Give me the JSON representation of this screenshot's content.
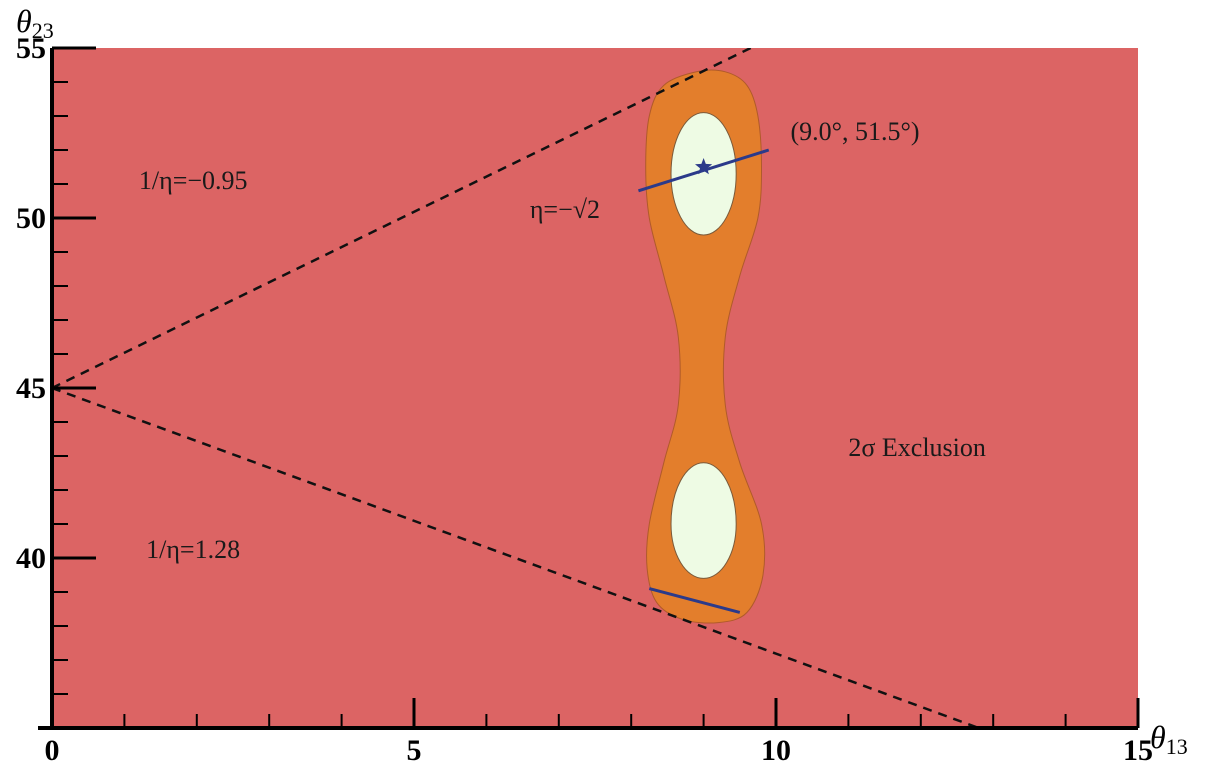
{
  "chart_data": {
    "type": "region",
    "xlabel": "θ",
    "xlabel_sub": "13",
    "ylabel": "θ",
    "ylabel_sub": "23",
    "xlim": [
      0,
      15
    ],
    "ylim": [
      35,
      55
    ],
    "x_ticks": [
      0,
      5,
      10,
      15
    ],
    "y_ticks": [
      40,
      45,
      50,
      55
    ],
    "x_minor_step": 1,
    "y_minor_step": 1,
    "colors": {
      "exclusion": "#dc6464",
      "allowed_2sigma": "#e37e2c",
      "allowed_1sigma": "#eefbe4",
      "eta_line": "#2b3a8a",
      "dashed": "#111111"
    },
    "regions": {
      "exclusion_label": "2σ Exclusion",
      "outer_allowed_2sigma": {
        "points": [
          [
            8.9,
            54.3
          ],
          [
            9.3,
            54.3
          ],
          [
            9.6,
            53.9
          ],
          [
            9.75,
            53.0
          ],
          [
            9.8,
            51.5
          ],
          [
            9.75,
            50.0
          ],
          [
            9.5,
            48.3
          ],
          [
            9.3,
            46.5
          ],
          [
            9.3,
            44.5
          ],
          [
            9.5,
            42.8
          ],
          [
            9.8,
            41.0
          ],
          [
            9.82,
            39.5
          ],
          [
            9.6,
            38.4
          ],
          [
            9.2,
            38.1
          ],
          [
            8.7,
            38.2
          ],
          [
            8.35,
            38.7
          ],
          [
            8.22,
            39.7
          ],
          [
            8.25,
            41.0
          ],
          [
            8.45,
            42.8
          ],
          [
            8.65,
            44.5
          ],
          [
            8.65,
            46.5
          ],
          [
            8.45,
            48.3
          ],
          [
            8.25,
            50.0
          ],
          [
            8.2,
            51.5
          ],
          [
            8.25,
            53.0
          ],
          [
            8.45,
            53.9
          ]
        ]
      },
      "inner_allowed_1sigma": [
        {
          "cx": 9.0,
          "cy": 51.3,
          "rx": 0.45,
          "ry_top": 1.8,
          "ry_bottom": 1.8
        },
        {
          "cx": 9.0,
          "cy": 41.0,
          "rx": 0.45,
          "ry_top": 1.8,
          "ry_bottom": 1.6
        }
      ]
    },
    "lines": [
      {
        "name": "1/η=−0.95",
        "style": "dashed",
        "x": [
          0,
          9.65
        ],
        "y": [
          45,
          55.0
        ]
      },
      {
        "name": "1/η=1.28",
        "style": "dashed",
        "x": [
          0,
          12.8
        ],
        "y": [
          45,
          35.0
        ]
      },
      {
        "name": "η=−√2",
        "style": "solid",
        "x": [
          8.1,
          9.9
        ],
        "y": [
          50.8,
          52.0
        ]
      },
      {
        "name": "η=−√2",
        "style": "solid",
        "x": [
          8.25,
          9.5
        ],
        "y": [
          39.1,
          38.4
        ]
      }
    ],
    "best_fit_point": {
      "x": 9.0,
      "y": 51.5,
      "label": "(9.0°, 51.5°)"
    },
    "annotations": [
      {
        "text": "1/η=−0.95",
        "x": 1.2,
        "y": 50.85
      },
      {
        "text": "1/η=1.28",
        "x": 1.3,
        "y": 40.0
      },
      {
        "text": "η=−√2",
        "x": 6.6,
        "y": 50.0
      },
      {
        "text": "(9.0°, 51.5°)",
        "x": 10.2,
        "y": 52.3
      },
      {
        "text": "2σ Exclusion",
        "x": 11.0,
        "y": 43.0
      }
    ]
  }
}
